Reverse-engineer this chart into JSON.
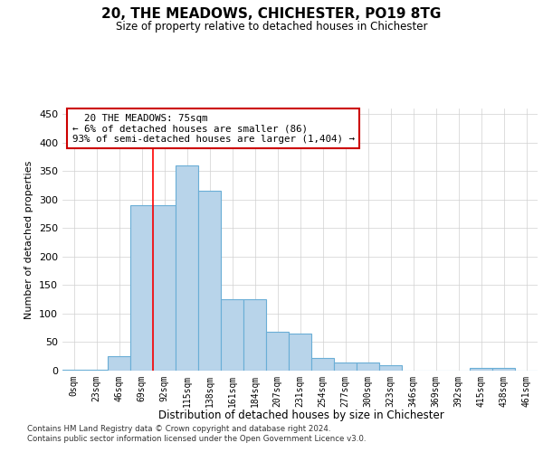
{
  "title1": "20, THE MEADOWS, CHICHESTER, PO19 8TG",
  "title2": "Size of property relative to detached houses in Chichester",
  "xlabel": "Distribution of detached houses by size in Chichester",
  "ylabel": "Number of detached properties",
  "categories": [
    "0sqm",
    "23sqm",
    "46sqm",
    "69sqm",
    "92sqm",
    "115sqm",
    "138sqm",
    "161sqm",
    "184sqm",
    "207sqm",
    "231sqm",
    "254sqm",
    "277sqm",
    "300sqm",
    "323sqm",
    "346sqm",
    "369sqm",
    "392sqm",
    "415sqm",
    "438sqm",
    "461sqm"
  ],
  "values": [
    2,
    2,
    25,
    290,
    290,
    360,
    315,
    125,
    125,
    68,
    65,
    22,
    15,
    15,
    10,
    0,
    0,
    0,
    5,
    5,
    0
  ],
  "bar_color": "#b8d4ea",
  "bar_edge_color": "#6aaed6",
  "red_line_index": 3.5,
  "annotation_text": "  20 THE MEADOWS: 75sqm\n← 6% of detached houses are smaller (86)\n93% of semi-detached houses are larger (1,404) →",
  "annotation_box_color": "#ffffff",
  "annotation_box_edge_color": "#cc0000",
  "footer1": "Contains HM Land Registry data © Crown copyright and database right 2024.",
  "footer2": "Contains public sector information licensed under the Open Government Licence v3.0.",
  "ylim": [
    0,
    460
  ],
  "yticks": [
    0,
    50,
    100,
    150,
    200,
    250,
    300,
    350,
    400,
    450
  ],
  "background_color": "#ffffff",
  "grid_color": "#d0d0d0"
}
